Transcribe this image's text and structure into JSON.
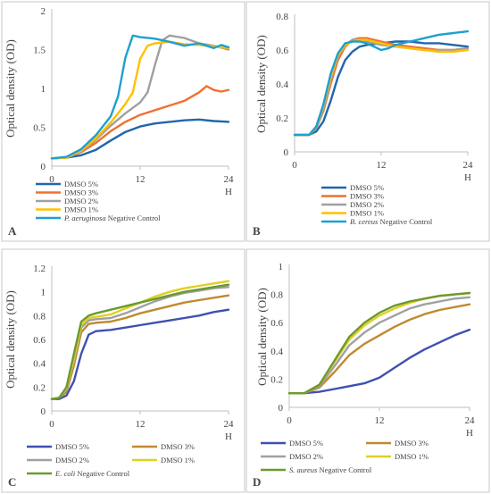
{
  "chart_data": [
    {
      "type": "line",
      "panel": "A",
      "ylabel": "Optical density (OD)",
      "xunit": "H",
      "xticks": [
        0,
        12,
        24
      ],
      "yticks": [
        0,
        0.5,
        1,
        1.5,
        2
      ],
      "xlim": [
        0,
        24
      ],
      "ylim": [
        0,
        2
      ],
      "legend_position": "bottom",
      "series": [
        {
          "label": "DMSO 5%",
          "color": "#2166AC",
          "x": [
            0,
            2,
            4,
            6,
            8,
            10,
            12,
            14,
            16,
            18,
            20,
            22,
            24
          ],
          "y": [
            0.1,
            0.11,
            0.14,
            0.21,
            0.33,
            0.44,
            0.51,
            0.55,
            0.57,
            0.59,
            0.6,
            0.58,
            0.57
          ]
        },
        {
          "label": "DMSO 3%",
          "color": "#F07030",
          "x": [
            0,
            2,
            4,
            6,
            8,
            10,
            12,
            14,
            16,
            18,
            20,
            21,
            22,
            23,
            24
          ],
          "y": [
            0.1,
            0.11,
            0.18,
            0.3,
            0.45,
            0.57,
            0.66,
            0.72,
            0.78,
            0.84,
            0.95,
            1.03,
            0.98,
            0.96,
            0.98
          ]
        },
        {
          "label": "DMSO 2%",
          "color": "#A0A0A0",
          "x": [
            0,
            2,
            4,
            6,
            8,
            10,
            12,
            13,
            14,
            15,
            16,
            18,
            20,
            22,
            24
          ],
          "y": [
            0.1,
            0.11,
            0.19,
            0.34,
            0.52,
            0.68,
            0.82,
            0.95,
            1.3,
            1.62,
            1.68,
            1.65,
            1.58,
            1.55,
            1.5
          ]
        },
        {
          "label": "DMSO 1%",
          "color": "#FFC000",
          "x": [
            0,
            2,
            4,
            6,
            8,
            10,
            11,
            12,
            13,
            14,
            16,
            18,
            20,
            22,
            24
          ],
          "y": [
            0.1,
            0.11,
            0.2,
            0.36,
            0.56,
            0.8,
            0.95,
            1.38,
            1.55,
            1.58,
            1.6,
            1.57,
            1.56,
            1.54,
            1.52
          ]
        },
        {
          "label": "P. aeruginosa Negative Control",
          "color": "#1EA0D0",
          "x": [
            0,
            2,
            4,
            6,
            8,
            9,
            10,
            11,
            12,
            14,
            16,
            18,
            20,
            22,
            23,
            24
          ],
          "y": [
            0.1,
            0.12,
            0.22,
            0.4,
            0.64,
            0.9,
            1.4,
            1.68,
            1.66,
            1.64,
            1.6,
            1.55,
            1.58,
            1.52,
            1.56,
            1.53
          ]
        }
      ]
    },
    {
      "type": "line",
      "panel": "B",
      "ylabel": "Optical density (OD)",
      "xunit": "H",
      "xticks": [
        0,
        12,
        24
      ],
      "yticks": [
        0,
        0.2,
        0.4,
        0.6,
        0.8
      ],
      "xlim": [
        0,
        24
      ],
      "ylim": [
        0,
        0.8
      ],
      "legend_position": "bottom",
      "series": [
        {
          "label": "DMSO 5%",
          "color": "#2166AC",
          "x": [
            0,
            2,
            3,
            4,
            5,
            6,
            7,
            8,
            9,
            10,
            12,
            14,
            16,
            18,
            20,
            22,
            24
          ],
          "y": [
            0.1,
            0.1,
            0.12,
            0.18,
            0.3,
            0.44,
            0.54,
            0.59,
            0.62,
            0.63,
            0.64,
            0.65,
            0.65,
            0.64,
            0.64,
            0.63,
            0.62
          ]
        },
        {
          "label": "DMSO 3%",
          "color": "#F07030",
          "x": [
            0,
            2,
            3,
            4,
            5,
            6,
            7,
            8,
            9,
            10,
            12,
            14,
            16,
            18,
            20,
            22,
            24
          ],
          "y": [
            0.1,
            0.1,
            0.14,
            0.24,
            0.4,
            0.54,
            0.62,
            0.66,
            0.67,
            0.67,
            0.65,
            0.63,
            0.62,
            0.61,
            0.6,
            0.6,
            0.61
          ]
        },
        {
          "label": "DMSO 2%",
          "color": "#A0A0A0",
          "x": [
            0,
            2,
            3,
            4,
            5,
            6,
            7,
            8,
            9,
            10,
            12,
            14,
            16,
            18,
            20,
            22,
            24
          ],
          "y": [
            0.1,
            0.1,
            0.14,
            0.25,
            0.42,
            0.56,
            0.63,
            0.66,
            0.66,
            0.65,
            0.63,
            0.62,
            0.61,
            0.6,
            0.6,
            0.6,
            0.61
          ]
        },
        {
          "label": "DMSO 1%",
          "color": "#FFC000",
          "x": [
            0,
            2,
            3,
            4,
            5,
            6,
            7,
            8,
            9,
            10,
            12,
            14,
            16,
            18,
            20,
            22,
            24
          ],
          "y": [
            0.1,
            0.1,
            0.15,
            0.27,
            0.44,
            0.57,
            0.63,
            0.65,
            0.66,
            0.66,
            0.64,
            0.62,
            0.61,
            0.6,
            0.59,
            0.59,
            0.6
          ]
        },
        {
          "label": "B. cereus Negative Control",
          "color": "#1EA0D0",
          "x": [
            0,
            2,
            3,
            4,
            5,
            6,
            7,
            8,
            9,
            10,
            11,
            12,
            13,
            14,
            16,
            18,
            20,
            22,
            24
          ],
          "y": [
            0.1,
            0.1,
            0.15,
            0.28,
            0.46,
            0.58,
            0.64,
            0.65,
            0.65,
            0.64,
            0.62,
            0.6,
            0.61,
            0.63,
            0.65,
            0.67,
            0.69,
            0.7,
            0.71
          ]
        }
      ]
    },
    {
      "type": "line",
      "panel": "C",
      "ylabel": "Optical density (OD)",
      "xunit": "H",
      "xticks": [
        0,
        12,
        24
      ],
      "yticks": [
        0,
        0.2,
        0.4,
        0.6,
        0.8,
        1,
        1.2
      ],
      "xlim": [
        0,
        24
      ],
      "ylim": [
        0,
        1.2
      ],
      "legend_position": "bottom",
      "series": [
        {
          "label": "DMSO 5%",
          "color": "#4050B0",
          "x": [
            0,
            1,
            2,
            3,
            4,
            5,
            6,
            8,
            10,
            12,
            14,
            16,
            18,
            20,
            22,
            24
          ],
          "y": [
            0.1,
            0.1,
            0.13,
            0.25,
            0.48,
            0.64,
            0.67,
            0.68,
            0.7,
            0.72,
            0.74,
            0.76,
            0.78,
            0.8,
            0.83,
            0.85
          ]
        },
        {
          "label": "DMSO 3%",
          "color": "#C08A30",
          "x": [
            0,
            1,
            2,
            3,
            4,
            5,
            6,
            8,
            10,
            12,
            14,
            16,
            18,
            20,
            22,
            24
          ],
          "y": [
            0.1,
            0.11,
            0.16,
            0.38,
            0.66,
            0.73,
            0.74,
            0.75,
            0.78,
            0.82,
            0.85,
            0.88,
            0.91,
            0.93,
            0.95,
            0.97
          ]
        },
        {
          "label": "DMSO 2%",
          "color": "#A0A0A0",
          "x": [
            0,
            1,
            2,
            3,
            4,
            5,
            6,
            8,
            10,
            12,
            14,
            16,
            18,
            20,
            22,
            24
          ],
          "y": [
            0.1,
            0.11,
            0.18,
            0.42,
            0.7,
            0.76,
            0.77,
            0.78,
            0.82,
            0.87,
            0.92,
            0.96,
            0.99,
            1.01,
            1.03,
            1.04
          ]
        },
        {
          "label": "DMSO 1%",
          "color": "#E0D020",
          "x": [
            0,
            1,
            2,
            3,
            4,
            5,
            6,
            8,
            10,
            12,
            14,
            16,
            18,
            20,
            22,
            24
          ],
          "y": [
            0.1,
            0.11,
            0.19,
            0.44,
            0.72,
            0.78,
            0.79,
            0.81,
            0.86,
            0.91,
            0.96,
            1.0,
            1.03,
            1.05,
            1.07,
            1.09
          ]
        },
        {
          "label": "E. coli Negative Control",
          "color": "#6A9A30",
          "x": [
            0,
            1,
            2,
            3,
            4,
            5,
            6,
            8,
            10,
            12,
            14,
            16,
            18,
            20,
            22,
            24
          ],
          "y": [
            0.1,
            0.11,
            0.2,
            0.48,
            0.75,
            0.8,
            0.82,
            0.85,
            0.88,
            0.91,
            0.94,
            0.97,
            1.0,
            1.02,
            1.04,
            1.06
          ]
        }
      ]
    },
    {
      "type": "line",
      "panel": "D",
      "ylabel": "Optical density (OD)",
      "xunit": "H",
      "xticks": [
        0,
        12,
        24
      ],
      "yticks": [
        0,
        0.2,
        0.4,
        0.6,
        0.8,
        1
      ],
      "xlim": [
        0,
        24
      ],
      "ylim": [
        0,
        1
      ],
      "legend_position": "bottom",
      "series": [
        {
          "label": "DMSO 5%",
          "color": "#4050B0",
          "x": [
            0,
            2,
            4,
            6,
            8,
            10,
            12,
            14,
            16,
            18,
            20,
            22,
            24
          ],
          "y": [
            0.1,
            0.1,
            0.11,
            0.13,
            0.15,
            0.17,
            0.21,
            0.28,
            0.35,
            0.41,
            0.46,
            0.51,
            0.55
          ]
        },
        {
          "label": "DMSO 3%",
          "color": "#C08A30",
          "x": [
            0,
            2,
            4,
            6,
            8,
            10,
            12,
            14,
            16,
            18,
            20,
            22,
            24
          ],
          "y": [
            0.1,
            0.1,
            0.14,
            0.25,
            0.37,
            0.45,
            0.51,
            0.57,
            0.62,
            0.66,
            0.69,
            0.71,
            0.73
          ]
        },
        {
          "label": "DMSO 2%",
          "color": "#A0A0A0",
          "x": [
            0,
            2,
            4,
            6,
            8,
            10,
            12,
            14,
            16,
            18,
            20,
            22,
            24
          ],
          "y": [
            0.1,
            0.1,
            0.15,
            0.29,
            0.44,
            0.53,
            0.6,
            0.65,
            0.7,
            0.73,
            0.75,
            0.77,
            0.78
          ]
        },
        {
          "label": "DMSO 1%",
          "color": "#E0D020",
          "x": [
            0,
            2,
            4,
            6,
            8,
            10,
            12,
            14,
            16,
            18,
            20,
            22,
            24
          ],
          "y": [
            0.1,
            0.1,
            0.16,
            0.32,
            0.48,
            0.58,
            0.65,
            0.7,
            0.74,
            0.77,
            0.79,
            0.8,
            0.81
          ]
        },
        {
          "label": "S. aureus Negative Control",
          "color": "#6A9A30",
          "x": [
            0,
            2,
            4,
            6,
            8,
            10,
            12,
            14,
            16,
            18,
            20,
            22,
            24
          ],
          "y": [
            0.1,
            0.1,
            0.16,
            0.33,
            0.5,
            0.6,
            0.67,
            0.72,
            0.75,
            0.77,
            0.79,
            0.8,
            0.81
          ]
        }
      ]
    }
  ]
}
